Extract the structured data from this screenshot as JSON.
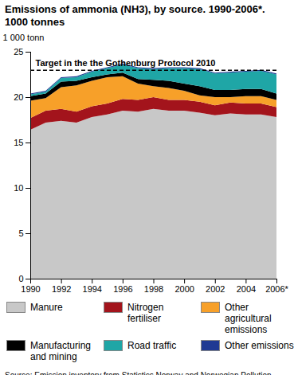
{
  "chart_data": {
    "type": "area",
    "title": "Emissions of ammonia (NH3), by source. 1990-2006*. 1000 tonnes",
    "y_label": "1 000 tonn",
    "source": "Source: Emission inventory from Statistics Norway and Norwegian Pollution Control Authority",
    "stacked": true,
    "grid": false,
    "legend": "bottom",
    "x": [
      1990,
      1991,
      1992,
      1993,
      1994,
      1995,
      1996,
      1997,
      1998,
      1999,
      2000,
      2001,
      2002,
      2003,
      2004,
      2005,
      2006
    ],
    "xlim": [
      1990,
      2006
    ],
    "xticks": [
      1990,
      1992,
      1994,
      1996,
      1998,
      2000,
      2002,
      2004,
      {
        "value": 2006,
        "label": "2006*"
      }
    ],
    "ylim": [
      0,
      25
    ],
    "yticks": [
      0,
      5,
      10,
      15,
      20,
      25
    ],
    "series": [
      {
        "name": "Manure",
        "color": "#c8c8c8",
        "values": [
          16.4,
          17.2,
          17.4,
          17.2,
          17.8,
          18.1,
          18.5,
          18.4,
          18.7,
          18.5,
          18.5,
          18.3,
          18.0,
          18.2,
          18.1,
          18.1,
          17.8
        ]
      },
      {
        "name": "Nitrogen fertiliser",
        "color": "#a3141c",
        "values": [
          1.3,
          1.3,
          1.3,
          1.2,
          1.2,
          1.2,
          1.3,
          1.3,
          1.3,
          1.2,
          1.2,
          1.2,
          1.1,
          1.2,
          1.2,
          1.2,
          1.1
        ]
      },
      {
        "name": "Other agricultural emissions",
        "color": "#f7a029",
        "values": [
          1.9,
          1.4,
          2.4,
          2.9,
          2.8,
          2.9,
          2.5,
          1.8,
          1.2,
          1.3,
          1.0,
          0.7,
          0.9,
          0.6,
          0.8,
          0.8,
          0.8
        ]
      },
      {
        "name": "Manufacturing and mining",
        "color": "#000000",
        "values": [
          0.5,
          0.5,
          0.6,
          0.5,
          0.4,
          0.3,
          0.4,
          0.5,
          0.7,
          0.8,
          0.8,
          1.0,
          0.8,
          0.8,
          0.8,
          0.8,
          0.7
        ]
      },
      {
        "name": "Road traffic",
        "color": "#1fa6a6",
        "values": [
          0.2,
          0.2,
          0.4,
          0.4,
          0.6,
          0.7,
          0.9,
          1.2,
          1.2,
          1.4,
          1.7,
          1.9,
          1.8,
          1.9,
          1.9,
          2.0,
          2.1
        ]
      },
      {
        "name": "Other emissions",
        "color": "#1f3a93",
        "values": [
          0.1,
          0.1,
          0.1,
          0.1,
          0.1,
          0.1,
          0.1,
          0.1,
          0.1,
          0.1,
          0.1,
          0.1,
          0.1,
          0.1,
          0.1,
          0.1,
          0.1
        ]
      }
    ],
    "annotations": [
      {
        "type": "hline",
        "text": "Target in the the Gothenburg Protocol 2010",
        "value": 23.0,
        "line_style": "dashed"
      }
    ]
  }
}
